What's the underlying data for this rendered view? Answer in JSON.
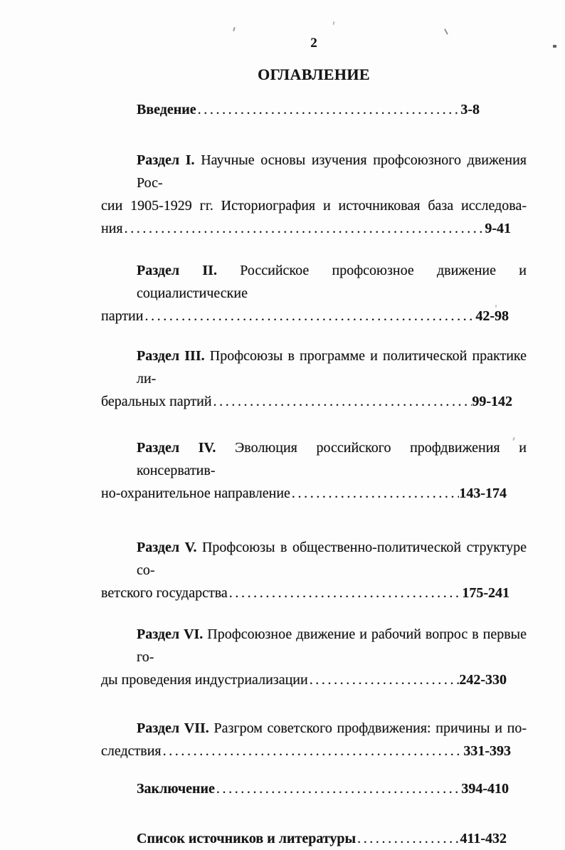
{
  "page": {
    "number": "2",
    "title": "ОГЛАВЛЕНИЕ"
  },
  "toc": {
    "dot_leader": "........................................................................................................................................................",
    "entries": [
      {
        "name": "vvedenie",
        "bold_lead": "Введение",
        "first_rest": "",
        "middle_lines": [],
        "tail": null,
        "pages": "3-8"
      },
      {
        "name": "razdel-1",
        "bold_lead": "Раздел I.",
        "first_rest": "Научные основы изучения профсоюзного движения Рос-",
        "middle_lines": [
          "сии 1905-1929 гг. Историография и источниковая база исследова-"
        ],
        "tail": "ния",
        "pages": "9-41"
      },
      {
        "name": "razdel-2",
        "bold_lead": "Раздел II.",
        "first_rest": "Российское профсоюзное движение и социалистические",
        "middle_lines": [],
        "tail": "партии",
        "pages": "42-98"
      },
      {
        "name": "razdel-3",
        "bold_lead": "Раздел III.",
        "first_rest": "Профсоюзы в программе и политической практике ли-",
        "middle_lines": [],
        "tail": "беральных партий",
        "pages": "99-142"
      },
      {
        "name": "razdel-4",
        "bold_lead": "Раздел IV.",
        "first_rest": "Эволюция российского профдвижения и консерватив-",
        "middle_lines": [],
        "tail": "но-охранительное направление",
        "pages": "143-174"
      },
      {
        "name": "razdel-5",
        "bold_lead": "Раздел V.",
        "first_rest": "Профсоюзы в общественно-политической структуре со-",
        "middle_lines": [],
        "tail": "ветского государства",
        "pages": "175-241"
      },
      {
        "name": "razdel-6",
        "bold_lead": "Раздел VI.",
        "first_rest": "Профсоюзное движение и рабочий вопрос в первые го-",
        "middle_lines": [],
        "tail": "ды проведения индустриализации",
        "pages": "242-330"
      },
      {
        "name": "razdel-7",
        "bold_lead": "Раздел VII.",
        "first_rest": "Разгром советского профдвижения: причины и по-",
        "middle_lines": [],
        "tail": "следствия",
        "pages": "331-393"
      },
      {
        "name": "zaklyuchenie",
        "bold_lead": "Заключение",
        "first_rest": "",
        "middle_lines": [],
        "tail": null,
        "pages": "394-410"
      },
      {
        "name": "spisok-istochnikov",
        "bold_lead": "Список источников и литературы",
        "first_rest": "",
        "middle_lines": [],
        "tail": null,
        "pages": "411-432"
      }
    ]
  }
}
